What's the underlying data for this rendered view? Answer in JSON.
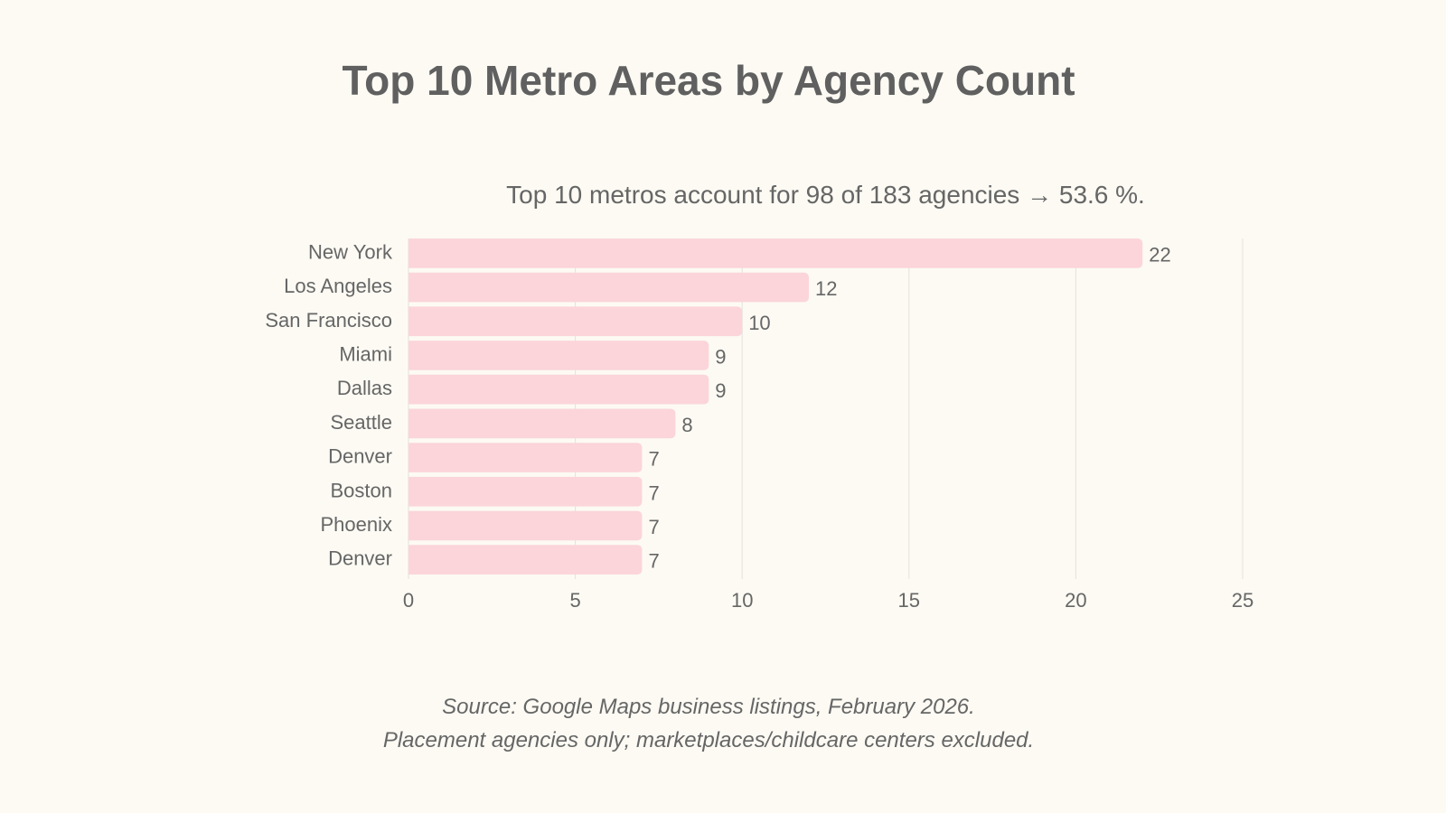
{
  "chart_data": {
    "type": "bar",
    "orientation": "horizontal",
    "title": "Top 10 Metro Areas by Agency Count",
    "subtitle": "Top 10 metros account for 98 of 183 agencies → 53.6 %.",
    "categories": [
      "New York",
      "Los Angeles",
      "San Francisco",
      "Miami",
      "Dallas",
      "Seattle",
      "Denver",
      "Boston",
      "Phoenix",
      "Denver"
    ],
    "values": [
      22,
      12,
      10,
      9,
      9,
      8,
      7,
      7,
      7,
      7
    ],
    "xlim": [
      0,
      25
    ],
    "xticks": [
      0,
      5,
      10,
      15,
      20,
      25
    ],
    "grid": "vertical",
    "data_labels": true,
    "xlabel": "",
    "ylabel": "",
    "bar_color": "#fbd5da",
    "grid_color": "#e4e2dc",
    "text_color": "#666666"
  },
  "footer": {
    "line1": "Source: Google Maps business listings, February 2026.",
    "line2": "Placement agencies only; marketplaces/childcare centers excluded."
  }
}
